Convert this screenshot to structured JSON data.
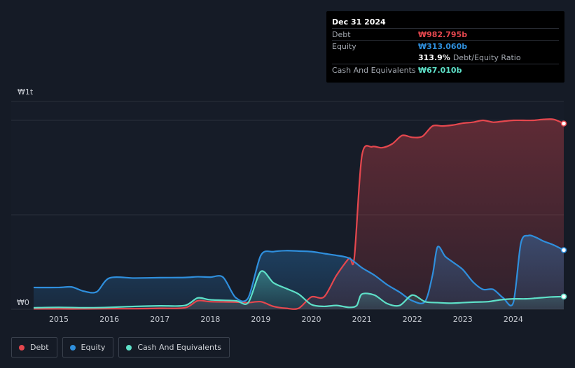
{
  "colors": {
    "debt": "#e5474e",
    "equity": "#2f8fdd",
    "cash": "#5ee0c8",
    "grid": "#2a303b",
    "axis_text": "#c8ccd3"
  },
  "tooltip": {
    "date": "Dec 31 2024",
    "rows": [
      {
        "label": "Debt",
        "value": "₩982.795b",
        "color": "#e5474e",
        "suffix": ""
      },
      {
        "label": "Equity",
        "value": "₩313.060b",
        "color": "#2f8fdd",
        "suffix": ""
      },
      {
        "label": "",
        "value": "313.9%",
        "color": "#ffffff",
        "suffix": "Debt/Equity Ratio"
      },
      {
        "label": "Cash And Equivalents",
        "value": "₩67.010b",
        "color": "#5ee0c8",
        "suffix": ""
      }
    ]
  },
  "legend": [
    {
      "label": "Debt",
      "color": "#e5474e"
    },
    {
      "label": "Equity",
      "color": "#2f8fdd"
    },
    {
      "label": "Cash And Equivalents",
      "color": "#5ee0c8"
    }
  ],
  "chart_data": {
    "type": "area",
    "ylabel_top": "₩1t",
    "ylabel_bottom": "₩0",
    "ylim": [
      0,
      1100
    ],
    "xlim": [
      2014.5,
      2025.0
    ],
    "x_ticks": [
      "2015",
      "2016",
      "2017",
      "2018",
      "2019",
      "2020",
      "2021",
      "2022",
      "2023",
      "2024"
    ],
    "gridlines": [
      0,
      500,
      1000
    ],
    "series": [
      {
        "name": "Debt",
        "x": [
          2014.5,
          2015.0,
          2015.5,
          2016.0,
          2016.5,
          2017.0,
          2017.5,
          2017.75,
          2018.0,
          2018.5,
          2018.75,
          2019.0,
          2019.25,
          2019.5,
          2019.75,
          2020.0,
          2020.25,
          2020.5,
          2020.75,
          2020.85,
          2021.0,
          2021.2,
          2021.4,
          2021.6,
          2021.8,
          2022.0,
          2022.2,
          2022.4,
          2022.6,
          2022.8,
          2023.0,
          2023.2,
          2023.4,
          2023.6,
          2023.8,
          2024.0,
          2024.2,
          2024.4,
          2024.6,
          2024.8,
          2025.0
        ],
        "values": [
          2,
          2,
          2,
          3,
          3,
          5,
          8,
          45,
          40,
          38,
          35,
          40,
          15,
          5,
          5,
          65,
          65,
          180,
          270,
          270,
          810,
          860,
          855,
          875,
          920,
          910,
          915,
          970,
          970,
          975,
          985,
          990,
          1000,
          990,
          995,
          1000,
          1000,
          1000,
          1005,
          1005,
          983
        ]
      },
      {
        "name": "Equity",
        "x": [
          2014.5,
          2015.0,
          2015.25,
          2015.5,
          2015.75,
          2016.0,
          2016.5,
          2017.0,
          2017.5,
          2017.75,
          2018.0,
          2018.25,
          2018.5,
          2018.75,
          2019.0,
          2019.25,
          2019.5,
          2019.75,
          2020.0,
          2020.25,
          2020.5,
          2020.75,
          2021.0,
          2021.25,
          2021.5,
          2021.75,
          2022.0,
          2022.25,
          2022.4,
          2022.5,
          2022.65,
          2022.8,
          2023.0,
          2023.2,
          2023.4,
          2023.6,
          2023.8,
          2024.0,
          2024.15,
          2024.3,
          2024.45,
          2024.6,
          2024.8,
          2025.0
        ],
        "values": [
          115,
          115,
          118,
          95,
          92,
          165,
          165,
          167,
          168,
          172,
          170,
          170,
          62,
          60,
          285,
          305,
          310,
          308,
          305,
          295,
          285,
          270,
          220,
          180,
          130,
          90,
          45,
          40,
          180,
          330,
          280,
          250,
          210,
          145,
          105,
          105,
          60,
          35,
          350,
          390,
          380,
          360,
          340,
          313
        ]
      },
      {
        "name": "Cash And Equivalents",
        "x": [
          2014.5,
          2015.0,
          2015.5,
          2016.0,
          2016.5,
          2017.0,
          2017.5,
          2017.75,
          2018.0,
          2018.5,
          2018.75,
          2019.0,
          2019.25,
          2019.5,
          2019.75,
          2020.0,
          2020.25,
          2020.5,
          2020.75,
          2020.9,
          2021.0,
          2021.25,
          2021.5,
          2021.75,
          2022.0,
          2022.25,
          2022.5,
          2022.75,
          2023.0,
          2023.25,
          2023.5,
          2023.75,
          2024.0,
          2024.25,
          2024.5,
          2024.75,
          2025.0
        ],
        "values": [
          8,
          10,
          8,
          10,
          15,
          18,
          20,
          60,
          50,
          45,
          35,
          200,
          140,
          110,
          80,
          25,
          15,
          20,
          10,
          20,
          80,
          75,
          30,
          20,
          75,
          40,
          35,
          32,
          35,
          38,
          40,
          50,
          55,
          55,
          60,
          65,
          67
        ]
      }
    ]
  }
}
